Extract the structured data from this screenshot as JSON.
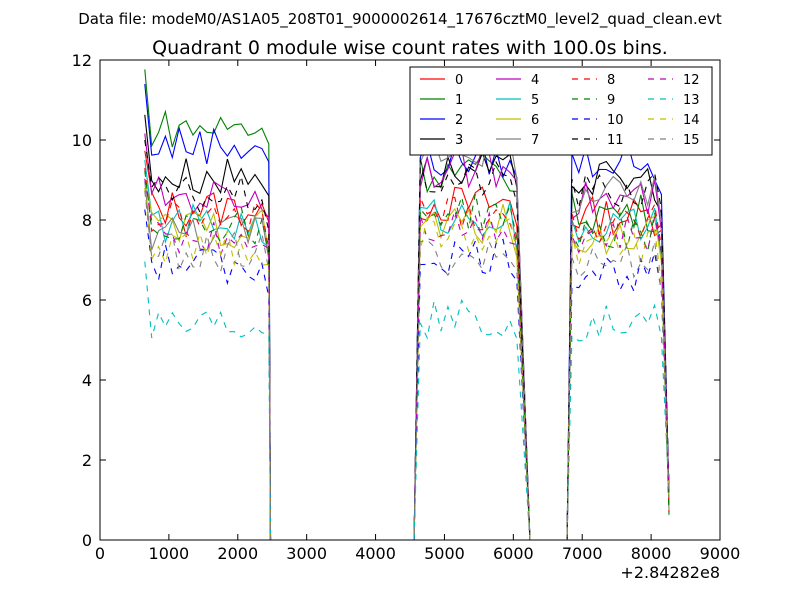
{
  "suptitle": "Data file: modeM0/AS1A05_208T01_9000002614_17676cztM0_level2_quad_clean.evt",
  "chart_data": {
    "type": "line",
    "title": "Quadrant 0 module wise count rates with 100.0s bins.",
    "xlabel": "",
    "ylabel": "",
    "x_offset_label": "+2.84282e8",
    "xlim": [
      0,
      9000
    ],
    "ylim": [
      0,
      12
    ],
    "xticks": [
      0,
      1000,
      2000,
      3000,
      4000,
      5000,
      6000,
      7000,
      8000,
      9000
    ],
    "yticks": [
      0,
      2,
      4,
      6,
      8,
      10,
      12
    ],
    "grid": false,
    "legend_position": "top-right",
    "legend_columns": 4,
    "segments": [
      {
        "x": [
          650,
          2450
        ],
        "y_end_drop": 2475
      },
      {
        "x": [
          4650,
          6050
        ],
        "y_start_rise": 4560,
        "y_end_drop": 6240
      },
      {
        "x": [
          6850,
          8150
        ],
        "y_start_rise": 6780,
        "y_end_drop": 8260
      }
    ],
    "series": [
      {
        "name": "0",
        "color": "#ff0000",
        "dash": "solid",
        "levels": [
          8.3,
          8.4,
          8.1
        ]
      },
      {
        "name": "1",
        "color": "#008000",
        "dash": "solid",
        "levels": [
          10.3,
          9.2,
          8.2
        ]
      },
      {
        "name": "2",
        "color": "#0000ff",
        "dash": "solid",
        "levels": [
          9.9,
          9.5,
          9.5
        ]
      },
      {
        "name": "3",
        "color": "#000000",
        "dash": "solid",
        "levels": [
          9.1,
          9.2,
          9.0
        ]
      },
      {
        "name": "4",
        "color": "#bf00bf",
        "dash": "solid",
        "levels": [
          8.6,
          9.3,
          8.5
        ]
      },
      {
        "name": "5",
        "color": "#00bfbf",
        "dash": "solid",
        "levels": [
          7.9,
          8.1,
          7.8
        ]
      },
      {
        "name": "6",
        "color": "#bfbf00",
        "dash": "solid",
        "levels": [
          7.8,
          7.9,
          7.6
        ]
      },
      {
        "name": "7",
        "color": "#808080",
        "dash": "solid",
        "levels": [
          7.7,
          9.8,
          8.6
        ]
      },
      {
        "name": "8",
        "color": "#ff0000",
        "dash": "dashed",
        "levels": [
          8.0,
          8.2,
          7.9
        ]
      },
      {
        "name": "9",
        "color": "#008000",
        "dash": "dashed",
        "levels": [
          7.9,
          8.2,
          7.7
        ]
      },
      {
        "name": "10",
        "color": "#0000ff",
        "dash": "dashed",
        "levels": [
          6.9,
          7.1,
          6.7
        ]
      },
      {
        "name": "11",
        "color": "#000000",
        "dash": "dashed",
        "levels": [
          8.6,
          9.0,
          8.7
        ]
      },
      {
        "name": "12",
        "color": "#bf00bf",
        "dash": "dashed",
        "levels": [
          7.6,
          7.9,
          7.6
        ]
      },
      {
        "name": "13",
        "color": "#00bfbf",
        "dash": "dashed",
        "levels": [
          5.5,
          5.5,
          5.4
        ]
      },
      {
        "name": "14",
        "color": "#bfbf00",
        "dash": "dashed",
        "levels": [
          7.3,
          7.6,
          7.3
        ]
      },
      {
        "name": "15",
        "color": "#808080",
        "dash": "dashed",
        "levels": [
          7.2,
          7.1,
          7.0
        ]
      }
    ]
  }
}
